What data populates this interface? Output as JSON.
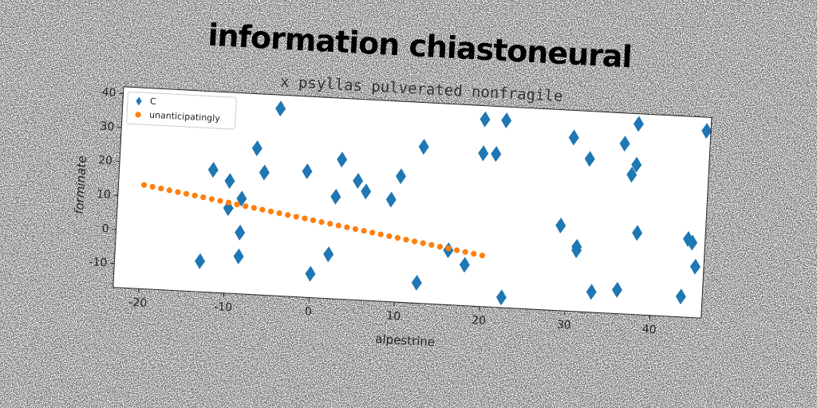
{
  "chart_data": {
    "type": "scatter",
    "title": "information chiastoneural",
    "subtitle": "x psyllas pulverated nonfragile",
    "x_label": "alpestrine",
    "y_label": "forminate",
    "xlim": [
      -23,
      46
    ],
    "ylim": [
      -17,
      42
    ],
    "xticks": [
      -20,
      -10,
      0,
      10,
      20,
      30,
      40
    ],
    "yticks": [
      -10,
      0,
      10,
      20,
      30,
      40
    ],
    "legend": "upper left",
    "series": [
      {
        "name": "C",
        "color": "#1f77b4",
        "marker": "diamond",
        "x": [
          -13,
          -12,
          -10,
          -10,
          -8.5,
          -8.5,
          -8.5,
          -7,
          -6,
          -4.5,
          -1,
          0,
          2,
          2.5,
          3,
          5,
          6,
          9,
          10,
          12.5,
          12.5,
          16,
          18,
          19.5,
          19.5,
          21,
          22,
          22.5,
          29,
          30,
          31,
          31,
          32,
          33,
          36,
          36,
          37,
          37.5,
          37.5,
          38,
          43.5,
          44,
          44.5,
          45,
          45.5
        ],
        "values": [
          -8,
          19,
          16,
          8,
          11,
          1,
          -6,
          26,
          19,
          38,
          20,
          -10,
          -4,
          13,
          24,
          18,
          15,
          13,
          20,
          29,
          -11,
          -1,
          -5,
          28,
          38,
          28,
          38,
          -14,
          8,
          34,
          2,
          1,
          28,
          -11,
          33,
          -10,
          24,
          27,
          39,
          7,
          -11,
          6,
          5,
          -2,
          38
        ]
      },
      {
        "name": "unanticipatingly",
        "color": "#ff7f0e",
        "marker": "circle",
        "x": [
          -20,
          -19,
          -18,
          -17,
          -16,
          -15,
          -14,
          -13,
          -12,
          -11,
          -10,
          -9,
          -8,
          -7,
          -6,
          -5,
          -4,
          -3,
          -2,
          -1,
          0,
          1,
          2,
          3,
          4,
          5,
          6,
          7,
          8,
          9,
          10,
          11,
          12,
          13,
          14,
          15,
          16,
          17,
          18,
          19,
          20
        ],
        "values": [
          13.5,
          13.11,
          12.73,
          12.34,
          11.95,
          11.56,
          11.18,
          10.79,
          10.4,
          10.01,
          9.63,
          9.24,
          8.85,
          8.46,
          8.08,
          7.69,
          7.3,
          6.91,
          6.53,
          6.14,
          5.75,
          5.36,
          4.98,
          4.59,
          4.2,
          3.81,
          3.43,
          3.04,
          2.65,
          2.26,
          1.88,
          1.49,
          1.1,
          0.71,
          0.33,
          -0.06,
          -0.45,
          -0.84,
          -1.22,
          -1.61,
          -2.0
        ]
      }
    ]
  }
}
